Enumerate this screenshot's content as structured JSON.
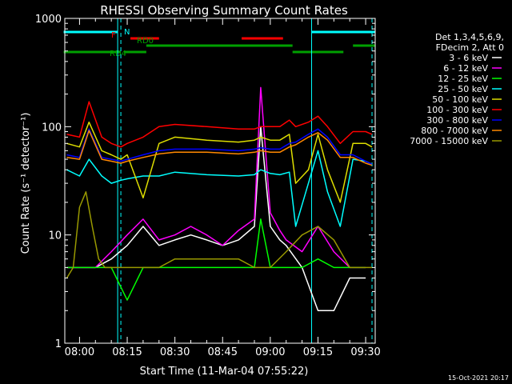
{
  "chart_data": {
    "type": "line",
    "title": "RHESSI Observing Summary Count Rates",
    "xlabel": "Start Time (11-Mar-04 07:55:22)",
    "ylabel": "Count Rate (s⁻¹ detector⁻¹)",
    "y_scale": "log",
    "ylim": [
      1,
      1000
    ],
    "xlim": [
      "07:55:22",
      "09:33:00"
    ],
    "y_ticks": [
      "1",
      "10",
      "100",
      "1000"
    ],
    "x_ticks": [
      "08:00",
      "08:15",
      "08:30",
      "08:45",
      "09:00",
      "09:15",
      "09:30"
    ],
    "timestamp": "15-Oct-2021 20:17",
    "legend": {
      "placement": "right",
      "header": [
        "Det 1,3,4,5,6,9,",
        "FDecim 2, Att 0"
      ],
      "color_bg": "#000000"
    },
    "flags": [
      {
        "label": "N",
        "color": "#00ffff",
        "segments": [
          [
            "07:55",
            "08:12"
          ],
          [
            "09:13",
            "09:33"
          ]
        ]
      },
      {
        "label": "F",
        "color": "#ff0000",
        "segments": [
          [
            "08:16",
            "08:25"
          ],
          [
            "08:51",
            "09:04"
          ]
        ]
      },
      {
        "label": "RD0",
        "color": "#00a000",
        "segments": [
          [
            "08:21",
            "09:07"
          ],
          [
            "09:26",
            "09:33"
          ]
        ]
      },
      {
        "label": "RD4",
        "color": "#00a000",
        "segments": [
          [
            "07:55",
            "08:13"
          ],
          [
            "08:14",
            "08:21"
          ],
          [
            "09:07",
            "09:23"
          ]
        ]
      }
    ],
    "markers": [
      {
        "type": "dashed",
        "color": "#00ffff",
        "x": "08:13"
      },
      {
        "type": "solid",
        "color": "#00ffff",
        "x": "08:12"
      },
      {
        "type": "solid",
        "color": "#00ffff",
        "x": "09:13"
      },
      {
        "type": "dashed",
        "color": "#00ffff",
        "x": "09:32"
      }
    ],
    "series": [
      {
        "name": "3 - 6 keV",
        "color": "#ffffff",
        "x": [
          "07:56",
          "08:00",
          "08:05",
          "08:10",
          "08:15",
          "08:20",
          "08:25",
          "08:30",
          "08:35",
          "08:40",
          "08:45",
          "08:50",
          "08:55",
          "08:57",
          "09:00",
          "09:03",
          "09:05",
          "09:10",
          "09:15",
          "09:20",
          "09:25",
          "09:30"
        ],
        "values": [
          5,
          5,
          5,
          6,
          8,
          12,
          8,
          9,
          10,
          9,
          8,
          9,
          12,
          100,
          12,
          9,
          8,
          5,
          2,
          2,
          4,
          4
        ]
      },
      {
        "name": "6 - 12 keV",
        "color": "#ff00ff",
        "x": [
          "07:56",
          "08:00",
          "08:05",
          "08:10",
          "08:15",
          "08:20",
          "08:25",
          "08:30",
          "08:35",
          "08:40",
          "08:45",
          "08:50",
          "08:55",
          "08:57",
          "09:00",
          "09:03",
          "09:05",
          "09:10",
          "09:15",
          "09:20",
          "09:25",
          "09:30"
        ],
        "values": [
          5,
          5,
          5,
          7,
          10,
          14,
          9,
          10,
          12,
          10,
          8,
          11,
          14,
          230,
          16,
          11,
          9,
          7,
          12,
          7,
          5,
          5
        ]
      },
      {
        "name": "12 - 25 keV",
        "color": "#00ff00",
        "x": [
          "07:56",
          "08:00",
          "08:05",
          "08:10",
          "08:15",
          "08:20",
          "08:25",
          "08:30",
          "08:35",
          "08:40",
          "08:45",
          "08:50",
          "08:55",
          "08:57",
          "09:00",
          "09:03",
          "09:05",
          "09:10",
          "09:15",
          "09:20",
          "09:25",
          "09:30"
        ],
        "values": [
          5,
          5,
          5,
          5,
          2.5,
          5,
          5,
          5,
          5,
          5,
          5,
          5,
          5,
          14,
          5,
          5,
          5,
          5,
          6,
          5,
          5,
          5
        ]
      },
      {
        "name": "25 - 50 keV",
        "color": "#00ffff",
        "x": [
          "07:56",
          "08:00",
          "08:03",
          "08:07",
          "08:10",
          "08:13",
          "08:15",
          "08:20",
          "08:25",
          "08:30",
          "08:40",
          "08:50",
          "08:55",
          "08:57",
          "09:00",
          "09:03",
          "09:06",
          "09:08",
          "09:12",
          "09:15",
          "09:18",
          "09:22",
          "09:26",
          "09:30",
          "09:32"
        ],
        "values": [
          40,
          35,
          50,
          35,
          30,
          32,
          33,
          35,
          35,
          38,
          36,
          35,
          36,
          40,
          37,
          36,
          38,
          12,
          30,
          60,
          25,
          12,
          50,
          48,
          45
        ]
      },
      {
        "name": "50 - 100 keV",
        "color": "#dddd00",
        "x": [
          "07:56",
          "08:00",
          "08:03",
          "08:07",
          "08:10",
          "08:13",
          "08:15",
          "08:20",
          "08:25",
          "08:30",
          "08:40",
          "08:50",
          "08:55",
          "08:57",
          "09:00",
          "09:03",
          "09:06",
          "09:08",
          "09:12",
          "09:15",
          "09:18",
          "09:22",
          "09:26",
          "09:30",
          "09:32"
        ],
        "values": [
          70,
          65,
          110,
          60,
          55,
          50,
          55,
          22,
          70,
          80,
          75,
          72,
          75,
          80,
          75,
          75,
          85,
          30,
          40,
          85,
          40,
          20,
          70,
          70,
          65
        ]
      },
      {
        "name": "100 - 300 keV",
        "color": "#ff0000",
        "x": [
          "07:56",
          "08:00",
          "08:03",
          "08:07",
          "08:10",
          "08:13",
          "08:15",
          "08:20",
          "08:25",
          "08:30",
          "08:40",
          "08:50",
          "08:55",
          "08:57",
          "09:00",
          "09:03",
          "09:06",
          "09:08",
          "09:12",
          "09:15",
          "09:18",
          "09:22",
          "09:26",
          "09:30",
          "09:32"
        ],
        "values": [
          85,
          80,
          170,
          80,
          70,
          65,
          70,
          80,
          100,
          105,
          100,
          95,
          95,
          100,
          100,
          100,
          115,
          100,
          110,
          125,
          100,
          70,
          90,
          90,
          85
        ]
      },
      {
        "name": "300 - 800 keV",
        "color": "#0000ff",
        "x": [
          "07:56",
          "08:00",
          "08:03",
          "08:07",
          "08:10",
          "08:13",
          "08:15",
          "08:20",
          "08:25",
          "08:30",
          "08:40",
          "08:50",
          "08:55",
          "08:57",
          "09:00",
          "09:03",
          "09:06",
          "09:08",
          "09:12",
          "09:15",
          "09:18",
          "09:22",
          "09:26",
          "09:30",
          "09:32"
        ],
        "values": [
          55,
          52,
          95,
          52,
          50,
          48,
          50,
          55,
          60,
          62,
          62,
          60,
          62,
          64,
          62,
          62,
          70,
          72,
          85,
          95,
          80,
          55,
          55,
          48,
          45
        ]
      },
      {
        "name": "800 - 7000 keV",
        "color": "#ff8800",
        "x": [
          "07:56",
          "08:00",
          "08:03",
          "08:07",
          "08:10",
          "08:13",
          "08:15",
          "08:20",
          "08:25",
          "08:30",
          "08:40",
          "08:50",
          "08:55",
          "08:57",
          "09:00",
          "09:03",
          "09:06",
          "09:08",
          "09:12",
          "09:15",
          "09:18",
          "09:22",
          "09:26",
          "09:30",
          "09:32"
        ],
        "values": [
          52,
          50,
          92,
          50,
          48,
          46,
          48,
          52,
          56,
          58,
          58,
          56,
          58,
          60,
          58,
          58,
          65,
          68,
          80,
          88,
          75,
          52,
          52,
          46,
          44
        ]
      },
      {
        "name": "7000 - 15000 keV",
        "color": "#999900",
        "x": [
          "07:56",
          "07:58",
          "08:00",
          "08:02",
          "08:04",
          "08:06",
          "08:08",
          "08:10",
          "08:13",
          "08:15",
          "08:20",
          "08:25",
          "08:30",
          "08:40",
          "08:50",
          "08:55",
          "09:00",
          "09:05",
          "09:10",
          "09:15",
          "09:20",
          "09:25",
          "09:30",
          "09:32"
        ],
        "values": [
          4,
          5,
          18,
          25,
          12,
          6,
          5,
          5,
          5,
          5,
          5,
          5,
          6,
          6,
          6,
          5,
          5,
          7,
          10,
          12,
          9,
          5,
          5,
          5
        ]
      }
    ]
  }
}
